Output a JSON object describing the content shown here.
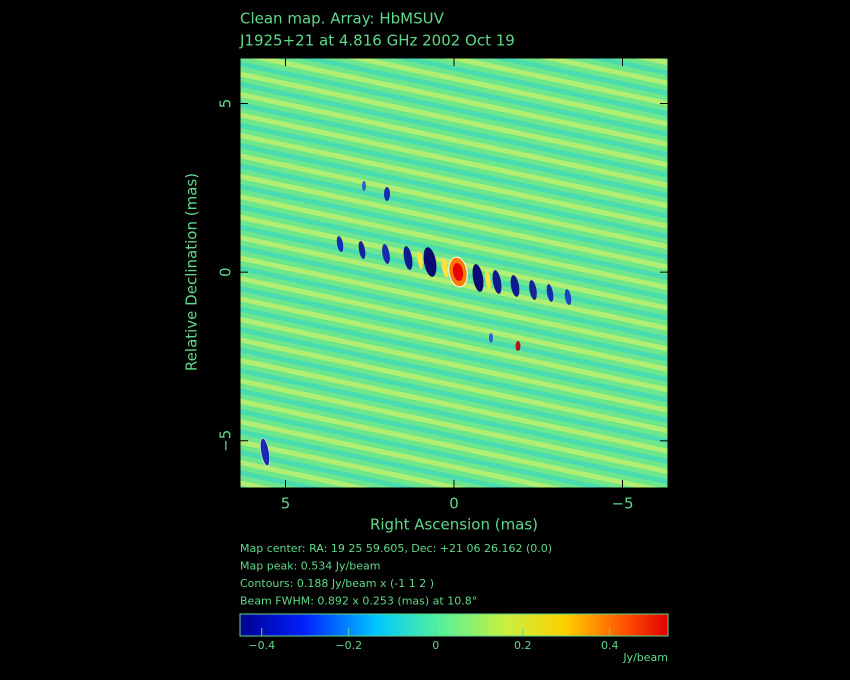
{
  "chart_data": {
    "type": "heatmap",
    "title": "Clean map.  Array: HbMSUV",
    "subtitle": "J1925+21 at 4.816 GHz 2002 Oct 19",
    "x_label": "Right Ascension  (mas)",
    "y_label": "Relative Declination  (mas)",
    "xlim": [
      6.35,
      -6.35
    ],
    "xticks": [
      5,
      0,
      {
        "value": -5,
        "label": "−5"
      }
    ],
    "ylim": [
      -6.4,
      6.35
    ],
    "yticks": [
      {
        "value": -5,
        "label": "−5"
      },
      0,
      5
    ],
    "info": [
      "Map center:  RA: 19 25 59.605,  Dec: +21 06 26.162 (0.0)",
      "Map peak: 0.534 Jy/beam",
      "Contours: 0.188 Jy/beam x (-1 1 2 )",
      "Beam FWHM: 0.892 x 0.253 (mas) at 10.8°"
    ],
    "colorbar": {
      "lim": [
        -0.45,
        0.534
      ],
      "ticks": [
        {
          "value": -0.4,
          "label": "−0.4"
        },
        {
          "value": -0.2,
          "label": "−0.2"
        },
        0,
        0.2,
        0.4
      ],
      "label": "Jy/beam"
    }
  }
}
